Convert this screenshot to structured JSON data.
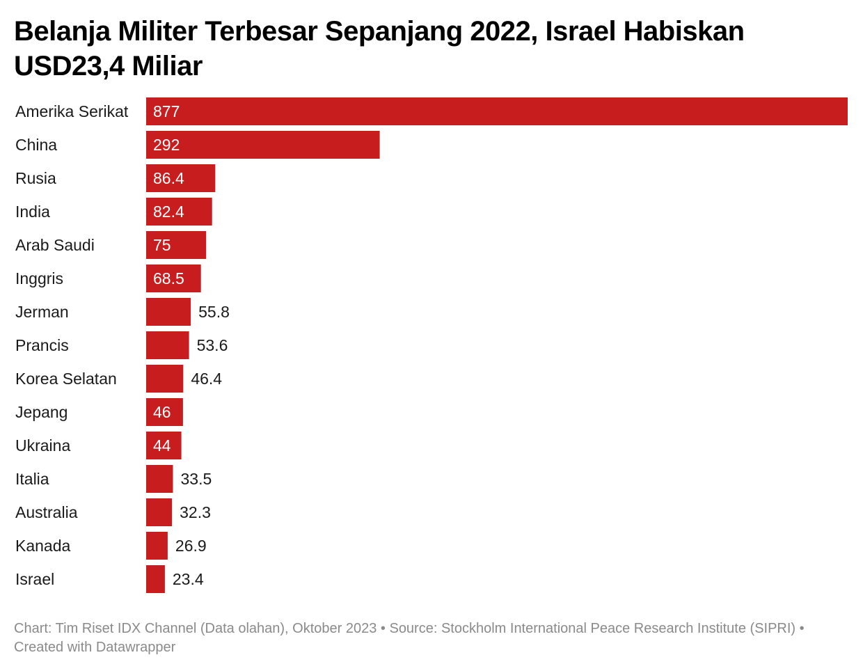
{
  "chart_data": {
    "type": "bar",
    "orientation": "horizontal",
    "title": "Belanja Militer Terbesar Sepanjang 2022, Israel Habiskan USD23,4 Miliar",
    "xlabel": "",
    "ylabel": "",
    "xlim": [
      0,
      877
    ],
    "grid": false,
    "categories": [
      "Amerika Serikat",
      "China",
      "Rusia",
      "India",
      "Arab Saudi",
      "Inggris",
      "Jerman",
      "Prancis",
      "Korea Selatan",
      "Jepang",
      "Ukraina",
      "Italia",
      "Australia",
      "Kanada",
      "Israel"
    ],
    "values": [
      877,
      292,
      86.4,
      82.4,
      75,
      68.5,
      55.8,
      53.6,
      46.4,
      46,
      44,
      33.5,
      32.3,
      26.9,
      23.4
    ],
    "value_labels": [
      "877",
      "292",
      "86.4",
      "82.4",
      "75",
      "68.5",
      "55.8",
      "53.6",
      "46.4",
      "46",
      "44",
      "33.5",
      "32.3",
      "26.9",
      "23.4"
    ],
    "label_inside": [
      true,
      true,
      true,
      true,
      true,
      true,
      false,
      false,
      false,
      true,
      true,
      false,
      false,
      false,
      false
    ],
    "bar_color": "#c71d1f",
    "footer": "Chart: Tim Riset IDX Channel (Data olahan), Oktober 2023 • Source: Stockholm International Peace Research Institute (SIPRI) • Created with Datawrapper"
  }
}
